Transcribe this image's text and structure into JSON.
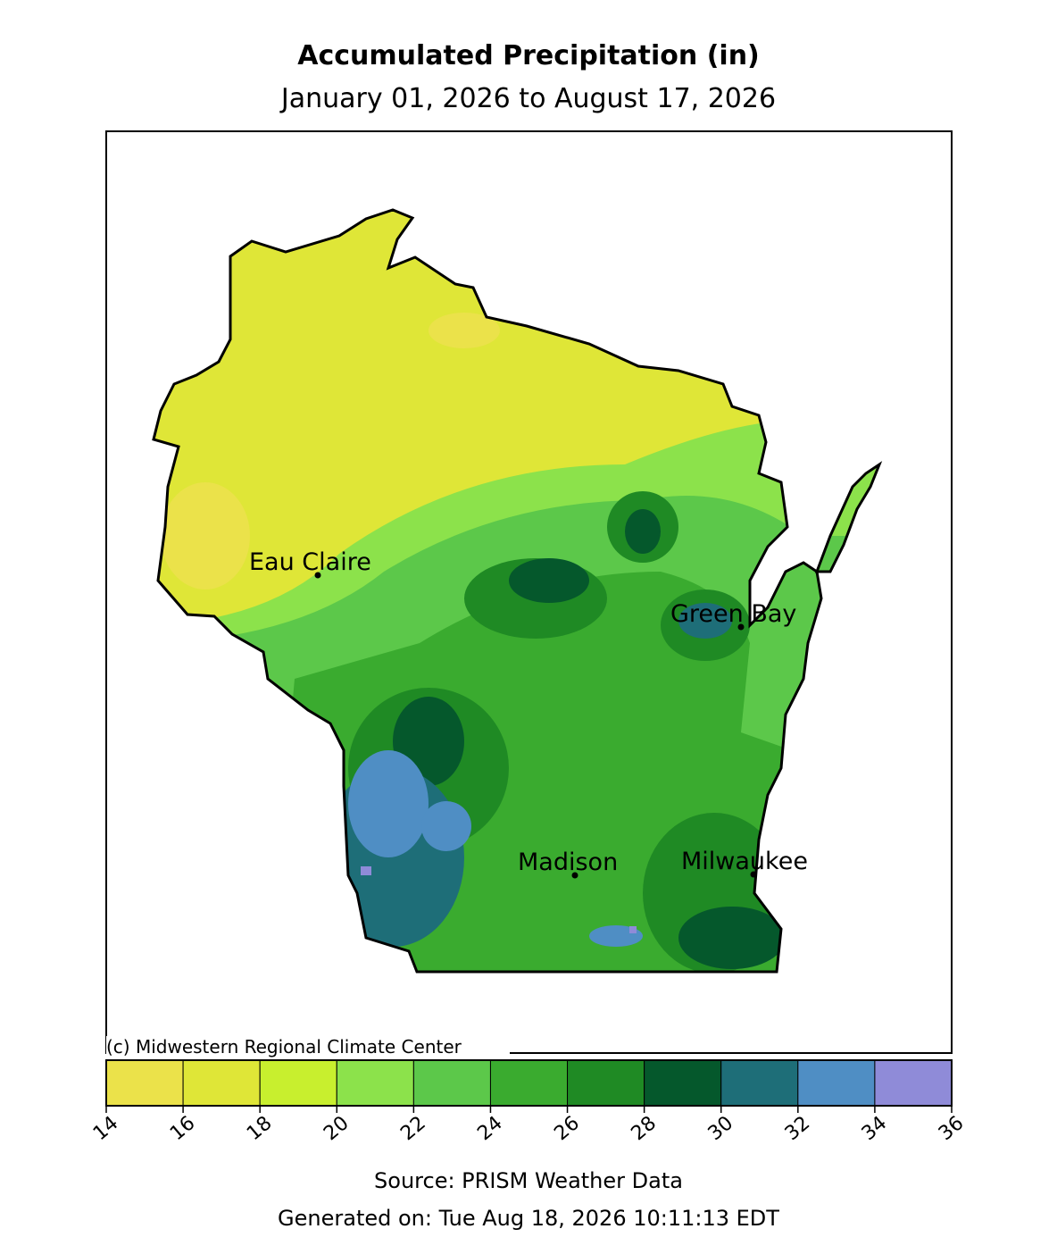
{
  "title": "Accumulated Precipitation (in)",
  "subtitle": "January 01, 2026 to August 17, 2026",
  "cities": [
    "Eau Claire",
    "Green Bay",
    "Madison",
    "Milwaukee"
  ],
  "credit": "(c) Midwestern Regional Climate Center",
  "colorbar": {
    "bins": [
      14,
      16,
      18,
      20,
      22,
      24,
      26,
      28,
      30,
      32,
      34,
      36
    ],
    "colors": [
      "#ebe24a",
      "#dfe637",
      "#c8ef2e",
      "#8ce24b",
      "#5cc84a",
      "#3aab2f",
      "#1f8a24",
      "#05582c",
      "#1e6e78",
      "#4f8ec4",
      "#8f8bd8"
    ]
  },
  "source": "Source: PRISM Weather Data",
  "generated": "Generated on: Tue Aug 18, 2026 10:11:13 EDT"
}
